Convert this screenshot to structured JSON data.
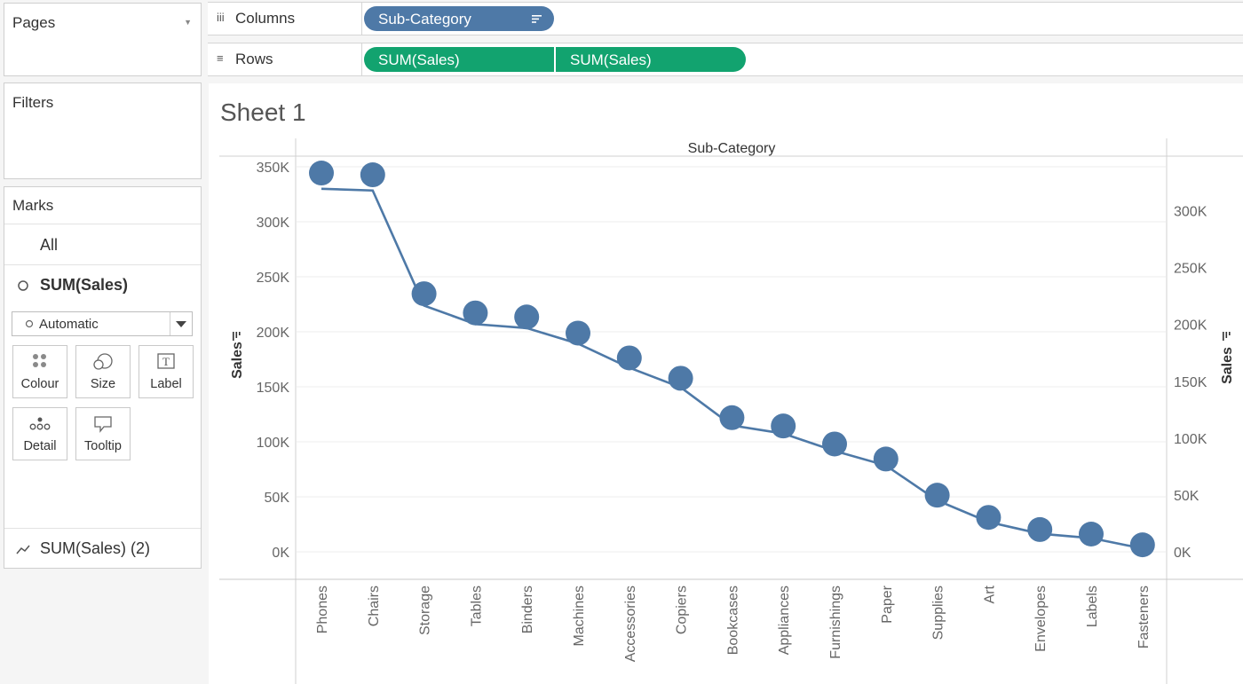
{
  "sidebar": {
    "pages": {
      "title": "Pages"
    },
    "filters": {
      "title": "Filters"
    },
    "marks": {
      "title": "Marks",
      "all_label": "All",
      "measure_label": "SUM(Sales)",
      "mark_type": "Automatic",
      "buttons": {
        "colour": "Colour",
        "size": "Size",
        "label": "Label",
        "detail": "Detail",
        "tooltip": "Tooltip"
      },
      "secondary_measure": "SUM(Sales) (2)"
    }
  },
  "shelves": {
    "columns": {
      "label": "Columns",
      "pill": "Sub-Category"
    },
    "rows": {
      "label": "Rows",
      "pills": [
        "SUM(Sales)",
        "SUM(Sales)"
      ]
    }
  },
  "sheet": {
    "title": "Sheet 1"
  },
  "colors": {
    "mark": "#4e79a7",
    "line": "#4e79a7",
    "pill_dimension": "#4e79a7",
    "pill_measure": "#12a36f"
  },
  "chart_data": {
    "type": "line",
    "title": "",
    "header": "Sub-Category",
    "categories": [
      "Phones",
      "Chairs",
      "Storage",
      "Tables",
      "Binders",
      "Machines",
      "Accessories",
      "Copiers",
      "Bookcases",
      "Appliances",
      "Furnishings",
      "Paper",
      "Supplies",
      "Art",
      "Envelopes",
      "Labels",
      "Fasteners"
    ],
    "series": [
      {
        "axis": "left",
        "mark": "line",
        "values": [
          330007,
          328449,
          223844,
          206966,
          203413,
          189239,
          167380,
          149528,
          114880,
          107532,
          91705,
          78479,
          46674,
          27119,
          16476,
          12486,
          3024
        ]
      },
      {
        "axis": "right",
        "mark": "circle",
        "values": [
          330007,
          328449,
          223844,
          206966,
          203413,
          189239,
          167380,
          149528,
          114880,
          107532,
          91705,
          78479,
          46674,
          27119,
          16476,
          12486,
          3024
        ]
      }
    ],
    "y_left": {
      "label": "Sales",
      "ticks": [
        "0K",
        "50K",
        "100K",
        "150K",
        "200K",
        "250K",
        "300K",
        "350K"
      ],
      "tick_values": [
        0,
        50000,
        100000,
        150000,
        200000,
        250000,
        300000,
        350000
      ],
      "range": [
        0,
        350000
      ]
    },
    "y_right": {
      "label": "Sales",
      "ticks": [
        "0K",
        "50K",
        "100K",
        "150K",
        "200K",
        "250K",
        "300K"
      ],
      "tick_values": [
        0,
        50000,
        100000,
        150000,
        200000,
        250000,
        300000
      ],
      "range": [
        0,
        305000
      ]
    },
    "grid": true,
    "sorted": "descending"
  }
}
